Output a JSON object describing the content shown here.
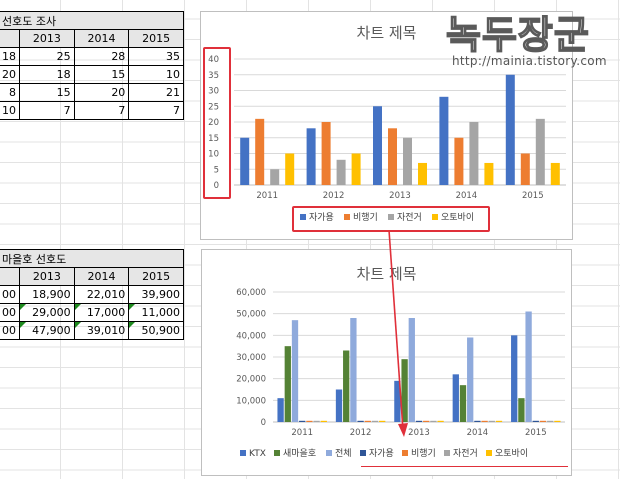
{
  "table1": {
    "title": "선호도 조사",
    "headers": [
      "2013",
      "2014",
      "2015"
    ],
    "rows": [
      {
        "a": "18",
        "cells": [
          "25",
          "28",
          "35"
        ]
      },
      {
        "a": "20",
        "cells": [
          "18",
          "15",
          "10"
        ]
      },
      {
        "a": "8",
        "cells": [
          "15",
          "20",
          "21"
        ]
      },
      {
        "a": "10",
        "cells": [
          "7",
          "7",
          "7"
        ]
      }
    ]
  },
  "table2": {
    "title": "마을호 선호도",
    "headers": [
      "2013",
      "2014",
      "2015"
    ],
    "rows": [
      {
        "a": "00",
        "cells": [
          "18,900",
          "22,010",
          "39,900"
        ]
      },
      {
        "a": "00",
        "cells": [
          "29,000",
          "17,000",
          "11,000"
        ]
      },
      {
        "a": "00",
        "cells": [
          "47,900",
          "39,010",
          "50,900"
        ]
      }
    ]
  },
  "watermark": {
    "text": "녹두장군",
    "url": "http://mainia.tistory.com"
  },
  "colors": {
    "blue": "#4472c4",
    "orange": "#ed7d31",
    "gray": "#a5a5a5",
    "yellow": "#ffc000",
    "green": "#70ad47",
    "lightblue": "#8faadc",
    "highlight": "#e0303a"
  },
  "chart_data": [
    {
      "type": "bar",
      "title": "차트 제목",
      "categories": [
        "2011",
        "2012",
        "2013",
        "2014",
        "2015"
      ],
      "ylim": [
        0,
        40
      ],
      "yticks": [
        "0",
        "5",
        "10",
        "15",
        "20",
        "25",
        "30",
        "35",
        "40"
      ],
      "series": [
        {
          "name": "자가용",
          "color": "#4472c4",
          "values": [
            15,
            18,
            25,
            28,
            35
          ]
        },
        {
          "name": "비행기",
          "color": "#ed7d31",
          "values": [
            21,
            20,
            18,
            15,
            10
          ]
        },
        {
          "name": "자전거",
          "color": "#a5a5a5",
          "values": [
            5,
            8,
            15,
            20,
            21
          ]
        },
        {
          "name": "오토바이",
          "color": "#ffc000",
          "values": [
            10,
            10,
            7,
            7,
            7
          ]
        }
      ],
      "legend": "bottom",
      "grid": true
    },
    {
      "type": "bar",
      "title": "차트 제목",
      "categories": [
        "2011",
        "2012",
        "2013",
        "2014",
        "2015"
      ],
      "ylim": [
        0,
        60000
      ],
      "yticks": [
        "0",
        "10,000",
        "20,000",
        "30,000",
        "40,000",
        "50,000",
        "60,000"
      ],
      "series": [
        {
          "name": "KTX",
          "color": "#4472c4",
          "values": [
            11000,
            15000,
            19000,
            22000,
            40000
          ]
        },
        {
          "name": "새마을호",
          "color": "#548235",
          "values": [
            35000,
            33000,
            29000,
            17000,
            11000
          ]
        },
        {
          "name": "전체",
          "color": "#8faadc",
          "values": [
            47000,
            48000,
            48000,
            39000,
            51000
          ]
        },
        {
          "name": "자가용",
          "color": "#2f5597",
          "values": [
            15,
            18,
            25,
            28,
            35
          ]
        },
        {
          "name": "비행기",
          "color": "#ed7d31",
          "values": [
            21,
            20,
            18,
            15,
            10
          ]
        },
        {
          "name": "자전거",
          "color": "#a5a5a5",
          "values": [
            5,
            8,
            15,
            20,
            21
          ]
        },
        {
          "name": "오토바이",
          "color": "#ffc000",
          "values": [
            10,
            10,
            7,
            7,
            7
          ]
        }
      ],
      "legend": "bottom",
      "grid": true
    }
  ]
}
